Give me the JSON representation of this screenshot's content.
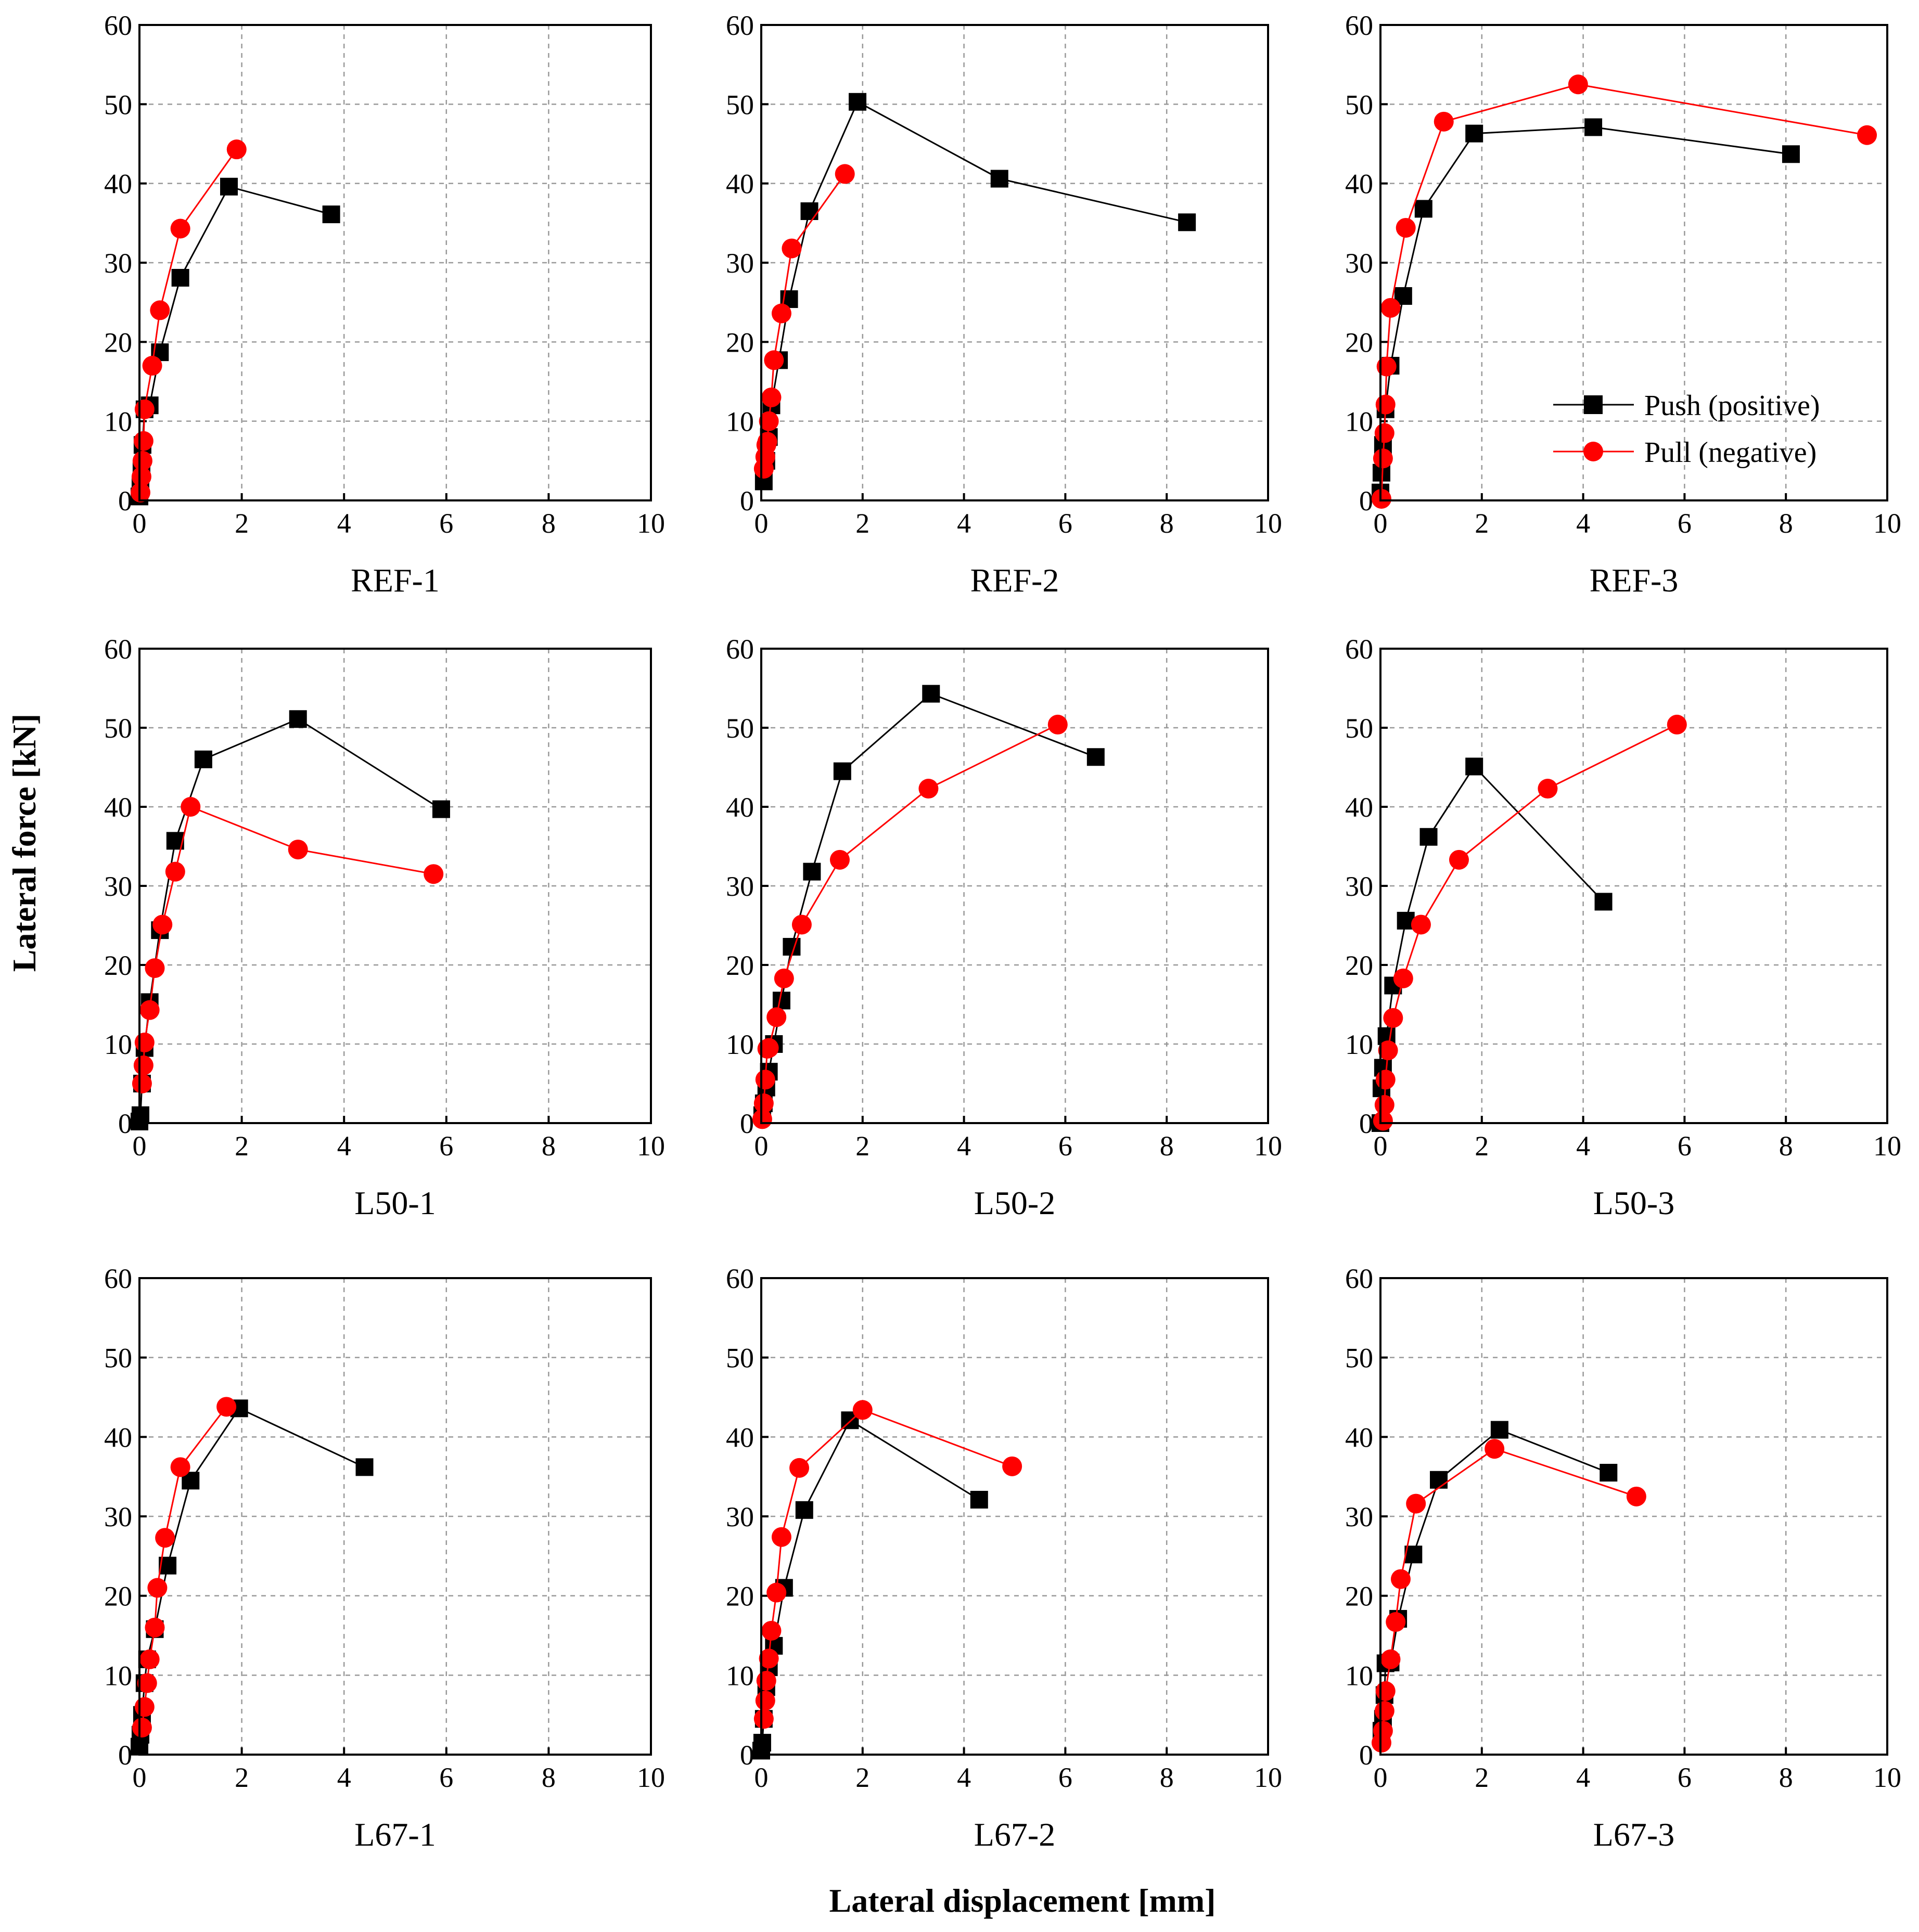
{
  "figure": {
    "xlabel": "Lateral displacement [mm]",
    "ylabel": "Lateral force [kN]"
  },
  "legend": {
    "push_label": "Push (positive)",
    "pull_label": "Pull (negative)"
  },
  "colors": {
    "push": "#000000",
    "pull": "#ff0000",
    "grid": "#999999"
  },
  "chart_data": [
    {
      "type": "line",
      "title": "REF-1",
      "xlim": [
        0,
        10
      ],
      "ylim": [
        0,
        60
      ],
      "xticks": [
        0,
        2,
        4,
        6,
        8,
        10
      ],
      "yticks": [
        0,
        10,
        20,
        30,
        40,
        50,
        60
      ],
      "series": [
        {
          "name": "Push (positive)",
          "marker": "square",
          "x": [
            0.0,
            0.02,
            0.04,
            0.06,
            0.1,
            0.2,
            0.4,
            0.8,
            1.75,
            3.75
          ],
          "y": [
            0.5,
            2,
            4,
            7,
            11.5,
            12,
            18.7,
            28.1,
            39.6,
            36.1
          ]
        },
        {
          "name": "Pull (negative)",
          "marker": "circle",
          "x": [
            0.02,
            0.04,
            0.06,
            0.08,
            0.1,
            0.25,
            0.4,
            0.8,
            1.9
          ],
          "y": [
            1,
            3,
            5,
            7.5,
            11.5,
            17,
            24,
            34.3,
            44.3
          ]
        }
      ]
    },
    {
      "type": "line",
      "title": "REF-2",
      "xlim": [
        0,
        10
      ],
      "ylim": [
        0,
        60
      ],
      "xticks": [
        0,
        2,
        4,
        6,
        8,
        10
      ],
      "yticks": [
        0,
        10,
        20,
        30,
        40,
        50,
        60
      ],
      "series": [
        {
          "name": "Push (positive)",
          "marker": "square",
          "x": [
            0.05,
            0.1,
            0.15,
            0.2,
            0.35,
            0.55,
            0.95,
            1.9,
            4.7,
            8.4
          ],
          "y": [
            2.4,
            5,
            8,
            12,
            17.7,
            25.4,
            36.5,
            50.3,
            40.6,
            35.1
          ]
        },
        {
          "name": "Pull (negative)",
          "marker": "circle",
          "x": [
            0.05,
            0.08,
            0.1,
            0.12,
            0.15,
            0.2,
            0.25,
            0.4,
            0.6,
            1.65
          ],
          "y": [
            4,
            5.5,
            7,
            7.4,
            10,
            13,
            17.7,
            23.6,
            31.8,
            41.2
          ]
        }
      ]
    },
    {
      "type": "line",
      "title": "REF-3",
      "xlim": [
        0,
        10
      ],
      "ylim": [
        0,
        60
      ],
      "xticks": [
        0,
        2,
        4,
        6,
        8,
        10
      ],
      "yticks": [
        0,
        10,
        20,
        30,
        40,
        50,
        60
      ],
      "series": [
        {
          "name": "Push (positive)",
          "marker": "square",
          "x": [
            0.0,
            0.02,
            0.05,
            0.1,
            0.2,
            0.45,
            0.85,
            1.85,
            4.2,
            8.1
          ],
          "y": [
            1,
            3.5,
            7,
            11.5,
            17,
            25.8,
            36.8,
            46.3,
            47.1,
            43.7
          ]
        },
        {
          "name": "Pull (negative)",
          "marker": "circle",
          "x": [
            0.02,
            0.05,
            0.08,
            0.1,
            0.12,
            0.2,
            0.5,
            1.25,
            3.9,
            9.6
          ],
          "y": [
            0.2,
            5.3,
            8.5,
            12.1,
            16.9,
            24.3,
            34.4,
            47.8,
            52.5,
            46.1
          ]
        }
      ]
    },
    {
      "type": "line",
      "title": "L50-1",
      "xlim": [
        0,
        10
      ],
      "ylim": [
        0,
        60
      ],
      "xticks": [
        0,
        2,
        4,
        6,
        8,
        10
      ],
      "yticks": [
        0,
        10,
        20,
        30,
        40,
        50,
        60
      ],
      "series": [
        {
          "name": "Push (positive)",
          "marker": "square",
          "x": [
            0.0,
            0.02,
            0.05,
            0.1,
            0.2,
            0.4,
            0.7,
            1.25,
            3.1,
            5.9
          ],
          "y": [
            0.2,
            1,
            5,
            9.5,
            15.3,
            24.4,
            35.7,
            46.0,
            51.1,
            39.7
          ]
        },
        {
          "name": "Pull (negative)",
          "marker": "circle",
          "x": [
            0.05,
            0.08,
            0.1,
            0.2,
            0.3,
            0.45,
            0.7,
            1.0,
            3.1,
            5.75
          ],
          "y": [
            5,
            7.3,
            10.2,
            14.3,
            19.6,
            25.1,
            31.8,
            40.0,
            34.6,
            31.5
          ]
        }
      ]
    },
    {
      "type": "line",
      "title": "L50-2",
      "xlim": [
        0,
        10
      ],
      "ylim": [
        0,
        60
      ],
      "xticks": [
        0,
        2,
        4,
        6,
        8,
        10
      ],
      "yticks": [
        0,
        10,
        20,
        30,
        40,
        50,
        60
      ],
      "series": [
        {
          "name": "Push (positive)",
          "marker": "square",
          "x": [
            0.02,
            0.05,
            0.1,
            0.15,
            0.25,
            0.4,
            0.6,
            1.0,
            1.6,
            3.35,
            6.6
          ],
          "y": [
            1,
            2.5,
            4.5,
            6.5,
            10,
            15.5,
            22.3,
            31.8,
            44.5,
            54.3,
            46.3
          ]
        },
        {
          "name": "Pull (negative)",
          "marker": "circle",
          "x": [
            0.02,
            0.05,
            0.08,
            0.12,
            0.15,
            0.3,
            0.45,
            0.8,
            1.55,
            3.3,
            5.85
          ],
          "y": [
            0.5,
            2.5,
            5.5,
            9.4,
            9.5,
            13.4,
            18.3,
            25.1,
            33.3,
            42.3,
            50.4
          ]
        }
      ]
    },
    {
      "type": "line",
      "title": "L50-3",
      "xlim": [
        0,
        10
      ],
      "ylim": [
        0,
        60
      ],
      "xticks": [
        0,
        2,
        4,
        6,
        8,
        10
      ],
      "yticks": [
        0,
        10,
        20,
        30,
        40,
        50,
        60
      ],
      "series": [
        {
          "name": "Push (positive)",
          "marker": "square",
          "x": [
            0.0,
            0.02,
            0.05,
            0.12,
            0.25,
            0.5,
            0.95,
            1.85,
            4.4
          ],
          "y": [
            0,
            4.4,
            7,
            11,
            17.4,
            25.6,
            36.2,
            45.1,
            28.0
          ]
        },
        {
          "name": "Pull (negative)",
          "marker": "circle",
          "x": [
            0.05,
            0.08,
            0.1,
            0.15,
            0.25,
            0.45,
            0.8,
            1.55,
            3.3,
            5.85
          ],
          "y": [
            0.3,
            2.3,
            5.5,
            9.2,
            13.3,
            18.3,
            25.1,
            33.3,
            42.3,
            50.4
          ]
        }
      ]
    },
    {
      "type": "line",
      "title": "L67-1",
      "xlim": [
        0,
        10
      ],
      "ylim": [
        0,
        60
      ],
      "xticks": [
        0,
        2,
        4,
        6,
        8,
        10
      ],
      "yticks": [
        0,
        10,
        20,
        30,
        40,
        50,
        60
      ],
      "series": [
        {
          "name": "Push (positive)",
          "marker": "square",
          "x": [
            0.0,
            0.02,
            0.05,
            0.1,
            0.15,
            0.3,
            0.55,
            1.0,
            1.95,
            4.4
          ],
          "y": [
            1,
            2.5,
            5,
            9,
            12,
            15.8,
            23.8,
            34.5,
            43.6,
            36.2
          ]
        },
        {
          "name": "Pull (negative)",
          "marker": "circle",
          "x": [
            0.05,
            0.1,
            0.15,
            0.2,
            0.3,
            0.35,
            0.5,
            0.8,
            1.7
          ],
          "y": [
            3.4,
            6,
            9,
            12,
            16,
            21,
            27.3,
            36.2,
            43.8
          ]
        }
      ]
    },
    {
      "type": "line",
      "title": "L67-2",
      "xlim": [
        0,
        10
      ],
      "ylim": [
        0,
        60
      ],
      "xticks": [
        0,
        2,
        4,
        6,
        8,
        10
      ],
      "yticks": [
        0,
        10,
        20,
        30,
        40,
        50,
        60
      ],
      "series": [
        {
          "name": "Push (positive)",
          "marker": "square",
          "x": [
            0.0,
            0.02,
            0.05,
            0.1,
            0.15,
            0.25,
            0.45,
            0.85,
            1.75,
            4.3
          ],
          "y": [
            0.5,
            1.5,
            4.5,
            8.5,
            11,
            13.7,
            21,
            30.8,
            42.1,
            32.1
          ]
        },
        {
          "name": "Pull (negative)",
          "marker": "circle",
          "x": [
            0.05,
            0.08,
            0.1,
            0.15,
            0.2,
            0.3,
            0.4,
            0.75,
            2.0,
            4.95
          ],
          "y": [
            4.5,
            6.8,
            9.3,
            12.1,
            15.6,
            20.4,
            27.4,
            36.1,
            43.4,
            36.3
          ]
        }
      ]
    },
    {
      "type": "line",
      "title": "L67-3",
      "xlim": [
        0,
        10
      ],
      "ylim": [
        0,
        60
      ],
      "xticks": [
        0,
        2,
        4,
        6,
        8,
        10
      ],
      "yticks": [
        0,
        10,
        20,
        30,
        40,
        50,
        60
      ],
      "series": [
        {
          "name": "Push (positive)",
          "marker": "square",
          "x": [
            0.02,
            0.05,
            0.08,
            0.1,
            0.2,
            0.35,
            0.65,
            1.15,
            2.35,
            4.5
          ],
          "y": [
            3,
            4.5,
            7.5,
            11.5,
            11.6,
            17.1,
            25.2,
            34.6,
            40.9,
            35.5
          ]
        },
        {
          "name": "Pull (negative)",
          "marker": "circle",
          "x": [
            0.02,
            0.05,
            0.08,
            0.1,
            0.2,
            0.3,
            0.4,
            0.7,
            2.25,
            5.05
          ],
          "y": [
            1.5,
            3,
            5.5,
            8,
            12,
            16.7,
            22.1,
            31.6,
            38.5,
            32.5
          ]
        }
      ]
    }
  ]
}
